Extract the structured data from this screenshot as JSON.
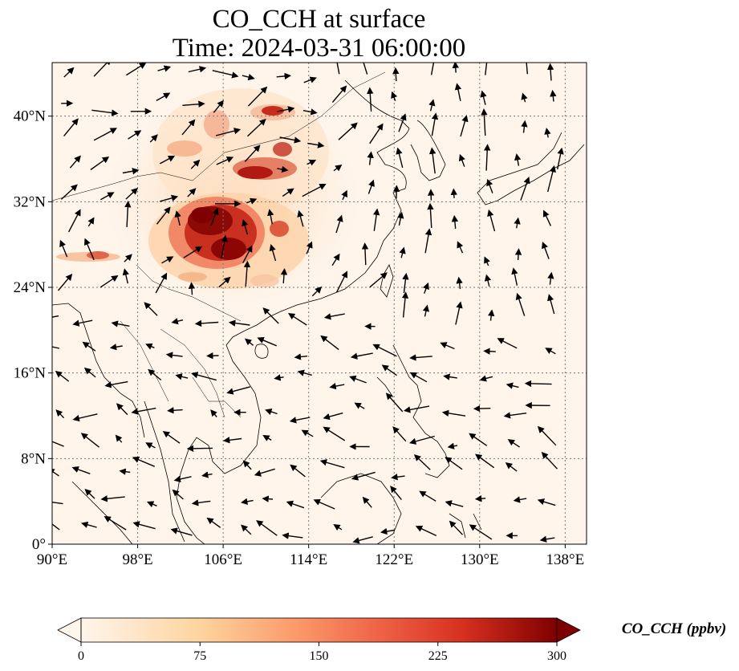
{
  "title_line1": "CO_CCH at surface",
  "title_line2": "Time: 2024-03-31 06:00:00",
  "map": {
    "lon_min": 90,
    "lon_max": 140,
    "lat_min": 0,
    "lat_max": 45,
    "gridlines": true,
    "x_ticks": [
      {
        "value": 90,
        "label": "90°E"
      },
      {
        "value": 98,
        "label": "98°E"
      },
      {
        "value": 106,
        "label": "106°E"
      },
      {
        "value": 114,
        "label": "114°E"
      },
      {
        "value": 122,
        "label": "122°E"
      },
      {
        "value": 130,
        "label": "130°E"
      },
      {
        "value": 138,
        "label": "138°E"
      }
    ],
    "y_ticks": [
      {
        "value": 0,
        "label": "0°"
      },
      {
        "value": 8,
        "label": "8°N"
      },
      {
        "value": 16,
        "label": "16°N"
      },
      {
        "value": 24,
        "label": "24°N"
      },
      {
        "value": 32,
        "label": "32°N"
      },
      {
        "value": 40,
        "label": "40°N"
      }
    ],
    "background_color": "#fff5eb",
    "wind_vectors": true
  },
  "colorbar": {
    "label": "CO_CCH (ppbv)",
    "min": 0,
    "max": 300,
    "ticks": [
      {
        "value": 0,
        "label": "0"
      },
      {
        "value": 75,
        "label": "75"
      },
      {
        "value": 150,
        "label": "150"
      },
      {
        "value": 225,
        "label": "225"
      },
      {
        "value": 300,
        "label": "300"
      }
    ],
    "colormap": "OrRd",
    "extend": "both"
  }
}
